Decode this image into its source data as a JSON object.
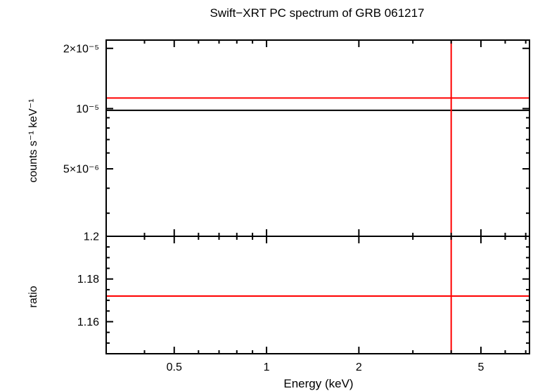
{
  "chart_data": {
    "type": "line",
    "title": "Swift−XRT PC spectrum of GRB 061217",
    "xlabel": "Energy (keV)",
    "x_scale": "log",
    "xlim": [
      0.3,
      7.2
    ],
    "x_ticks": [
      {
        "value": 0.5,
        "label": "0.5"
      },
      {
        "value": 1,
        "label": "1"
      },
      {
        "value": 2,
        "label": "2"
      },
      {
        "value": 5,
        "label": "5"
      }
    ],
    "top_panel": {
      "ylabel": "counts s⁻¹ keV⁻¹",
      "y_scale": "log",
      "ylim": [
        2.3e-06,
        2.2e-05
      ],
      "y_ticks": [
        {
          "value": 2e-05,
          "label": "2×10⁻⁵"
        },
        {
          "value": 1e-05,
          "label": "10⁻⁵"
        },
        {
          "value": 5e-06,
          "label": "5×10⁻⁶"
        }
      ],
      "series": [
        {
          "color": "#000000",
          "x": [
            0.3,
            7.2
          ],
          "y": [
            9.8e-06,
            9.8e-06
          ]
        },
        {
          "color": "#ff0000",
          "x": [
            0.3,
            7.2
          ],
          "y": [
            1.13e-05,
            1.13e-05
          ]
        }
      ],
      "vlines": [
        {
          "color": "#ff0000",
          "x": 4.0
        }
      ]
    },
    "bottom_panel": {
      "ylabel": "ratio",
      "y_scale": "linear",
      "ylim": [
        1.145,
        1.2
      ],
      "y_ticks": [
        {
          "value": 1.2,
          "label": "1.2"
        },
        {
          "value": 1.18,
          "label": "1.18"
        },
        {
          "value": 1.16,
          "label": "1.16"
        }
      ],
      "series": [
        {
          "color": "#ff0000",
          "x": [
            0.3,
            7.2
          ],
          "y": [
            1.172,
            1.172
          ]
        }
      ],
      "vlines": [
        {
          "color": "#ff0000",
          "x": 4.0
        }
      ]
    }
  }
}
